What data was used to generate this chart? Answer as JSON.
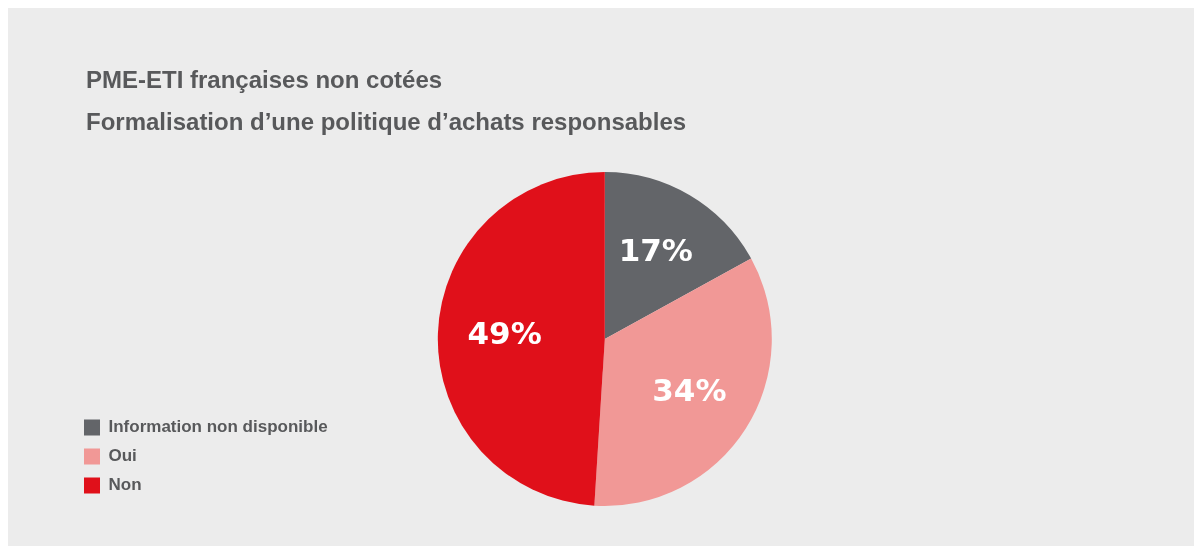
{
  "chart_data": {
    "type": "pie",
    "title": "PME-ETI françaises non cotées",
    "subtitle": "Formalisation d’une politique d’achats responsables",
    "categories": [
      "Information non disponible",
      "Oui",
      "Non"
    ],
    "values": [
      17,
      34,
      49
    ],
    "colors": [
      "#636569",
      "#f19896",
      "#e0101a"
    ],
    "value_labels": [
      "17%",
      "34%",
      "49%"
    ],
    "legend": "bottom left"
  }
}
